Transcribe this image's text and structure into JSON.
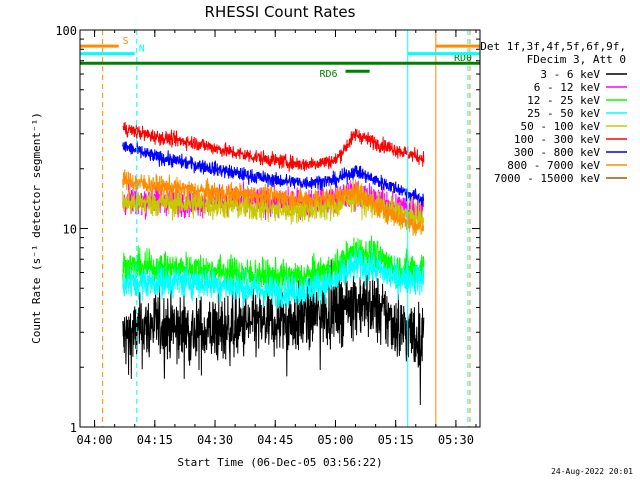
{
  "chart_data": {
    "type": "line",
    "title": "RHESSI Count Rates",
    "xlabel": "Start Time (06-Dec-05 03:56:22)",
    "ylabel": "Count Rate (s⁻¹ detector segment⁻¹)",
    "yscale": "log",
    "xlim": [
      "03:56:22",
      "05:36:00"
    ],
    "ylim": [
      1,
      100
    ],
    "x_ticks": [
      "04:00",
      "04:15",
      "04:30",
      "04:45",
      "05:00",
      "05:15",
      "05:30"
    ],
    "y_ticks": [
      "1",
      "10",
      "100"
    ],
    "legend_header": [
      "Det 1f,3f,4f,5f,6f,9f,",
      "FDecim 3, Att 0"
    ],
    "legend_placement": "right",
    "footer": "24-Aug-2022 20:01",
    "series": [
      {
        "name": "3 - 6 keV",
        "color": "#000000",
        "x": [
          "04:07",
          "04:15",
          "04:25",
          "04:35",
          "04:45",
          "04:52",
          "05:00",
          "05:05",
          "05:10",
          "05:15",
          "05:22"
        ],
        "y": [
          2.8,
          3.3,
          3.0,
          3.2,
          3.4,
          3.5,
          4.0,
          4.3,
          4.0,
          3.3,
          2.7
        ]
      },
      {
        "name": "6 - 12 keV",
        "color": "#ff00ff",
        "x": [
          "04:07",
          "04:15",
          "04:25",
          "04:35",
          "04:45",
          "04:52",
          "05:00",
          "05:05",
          "05:10",
          "05:15",
          "05:22"
        ],
        "y": [
          13.5,
          14.0,
          13.5,
          14.0,
          13.5,
          13.5,
          14.0,
          15.0,
          14.0,
          13.0,
          12.5
        ]
      },
      {
        "name": "12 - 25 keV",
        "color": "#00ff00",
        "x": [
          "04:07",
          "04:15",
          "04:25",
          "04:35",
          "04:45",
          "04:52",
          "05:00",
          "05:05",
          "05:10",
          "05:15",
          "05:22"
        ],
        "y": [
          6.5,
          6.3,
          6.3,
          6.0,
          5.7,
          5.7,
          6.3,
          7.8,
          7.3,
          6.3,
          6.3
        ]
      },
      {
        "name": "25 - 50 keV",
        "color": "#00ffff",
        "x": [
          "04:07",
          "04:15",
          "04:25",
          "04:35",
          "04:45",
          "04:52",
          "05:00",
          "05:05",
          "05:10",
          "05:15",
          "05:22"
        ],
        "y": [
          5.3,
          5.4,
          5.4,
          5.1,
          4.8,
          4.9,
          5.4,
          6.6,
          6.3,
          5.6,
          5.6
        ]
      },
      {
        "name": "50 - 100 keV",
        "color": "#c8c800",
        "x": [
          "04:07",
          "04:15",
          "04:25",
          "04:35",
          "04:45",
          "04:52",
          "05:00",
          "05:05",
          "05:10",
          "05:15",
          "05:22"
        ],
        "y": [
          13.5,
          13.5,
          13.3,
          13.0,
          12.5,
          12.5,
          13.0,
          14.5,
          13.0,
          12.0,
          11.0
        ]
      },
      {
        "name": "100 - 300 keV",
        "color": "#ff0000",
        "x": [
          "04:07",
          "04:15",
          "04:25",
          "04:35",
          "04:45",
          "04:52",
          "05:00",
          "05:05",
          "05:10",
          "05:15",
          "05:22"
        ],
        "y": [
          32,
          29,
          27,
          24,
          22,
          21,
          22,
          30,
          27,
          25,
          22.5
        ]
      },
      {
        "name": "300 - 800 keV",
        "color": "#0000ff",
        "x": [
          "04:07",
          "04:15",
          "04:25",
          "04:35",
          "04:45",
          "04:52",
          "05:00",
          "05:05",
          "05:10",
          "05:15",
          "05:22"
        ],
        "y": [
          26,
          23,
          21,
          19,
          17.5,
          17,
          17.5,
          19.5,
          17.5,
          16,
          14
        ]
      },
      {
        "name": "800 - 7000 keV",
        "color": "#ff8c00",
        "x": [
          "04:07",
          "04:15",
          "04:25",
          "04:35",
          "04:45",
          "04:52",
          "05:00",
          "05:05",
          "05:10",
          "05:15",
          "05:22"
        ],
        "y": [
          17.5,
          16.5,
          15.5,
          15,
          14.5,
          14,
          14.5,
          15.5,
          13,
          11.5,
          10
        ]
      },
      {
        "name": "7000 - 15000 keV",
        "color": "#a05a00",
        "x": [],
        "y": []
      }
    ],
    "annotations": [
      {
        "label": "S",
        "color": "#ff8c00",
        "x_start": "03:56:22",
        "x_end": "04:06:00",
        "y": 83
      },
      {
        "label": "N",
        "color": "#00ffff",
        "x_start": "03:56:22",
        "x_end": "04:10:00",
        "y": 76
      },
      {
        "label": "RD0",
        "color": "#008000",
        "x_start": "03:56:22",
        "x_end": "05:36:00",
        "y": 68
      },
      {
        "label": "RD6",
        "color": "#008000",
        "x_start": "05:02:30",
        "x_end": "05:08:30",
        "y": 62
      },
      {
        "label": "",
        "color": "#00ffff",
        "x_start": "05:18:00",
        "x_end": "05:36:00",
        "y": 76
      },
      {
        "label": "",
        "color": "#ff8c00",
        "x_start": "05:25:00",
        "x_end": "05:36:00",
        "y": 83
      }
    ],
    "vertical_lines": [
      {
        "x": "04:02:00",
        "color": "#ff8c00",
        "style": "dashed"
      },
      {
        "x": "04:10:30",
        "color": "#00ffff",
        "style": "dashed"
      },
      {
        "x": "05:18:00",
        "color": "#00ffff",
        "style": "solid"
      },
      {
        "x": "05:25:00",
        "color": "#ff8c00",
        "style": "solid"
      },
      {
        "x": "05:33:00",
        "color": "#00ffff",
        "style": "dashed"
      },
      {
        "x": "05:33:30",
        "color": "#ff8c00",
        "style": "dashed"
      }
    ]
  }
}
